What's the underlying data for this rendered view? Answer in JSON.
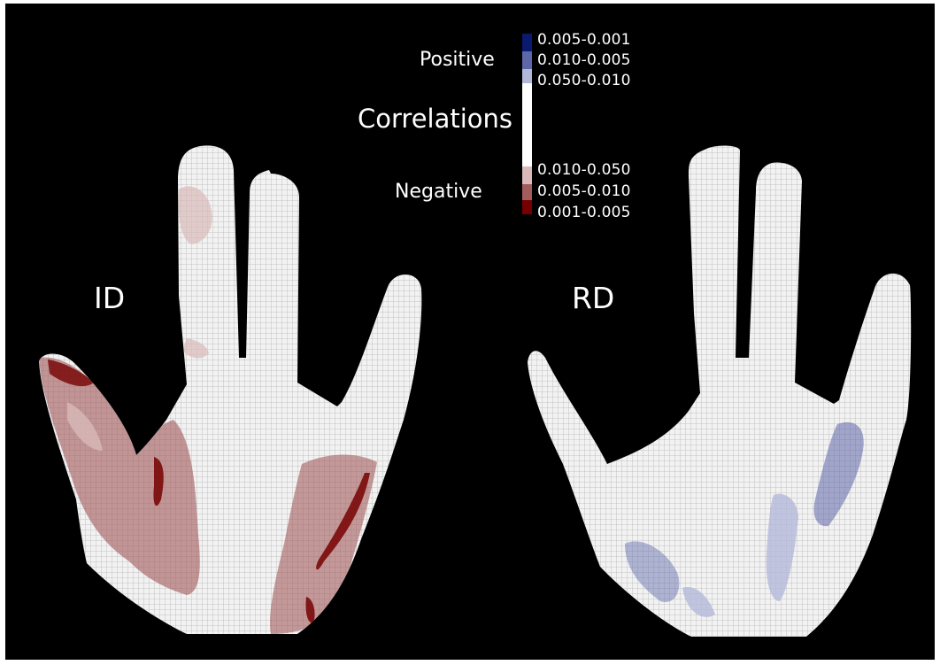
{
  "hand_labels": {
    "left": "ID",
    "right": "RD"
  },
  "legend": {
    "title": "Correlations",
    "positive_label": "Positive",
    "negative_label": "Negative",
    "positive_ranges": [
      {
        "label": "0.005-0.001",
        "color": "#0a1a6e"
      },
      {
        "label": "0.010-0.005",
        "color": "#5c66a8"
      },
      {
        "label": "0.050-0.010",
        "color": "#b4b8d8"
      }
    ],
    "neutral_color": "#ffffff",
    "negative_ranges": [
      {
        "label": "0.010-0.050",
        "color": "#d9b9b9"
      },
      {
        "label": "0.005-0.010",
        "color": "#a35c5c"
      },
      {
        "label": "0.001-0.005",
        "color": "#760000"
      }
    ]
  },
  "colors": {
    "background": "#000000",
    "hand_fill": "#f2f2f2",
    "grid_line": "#b5b5b5"
  }
}
